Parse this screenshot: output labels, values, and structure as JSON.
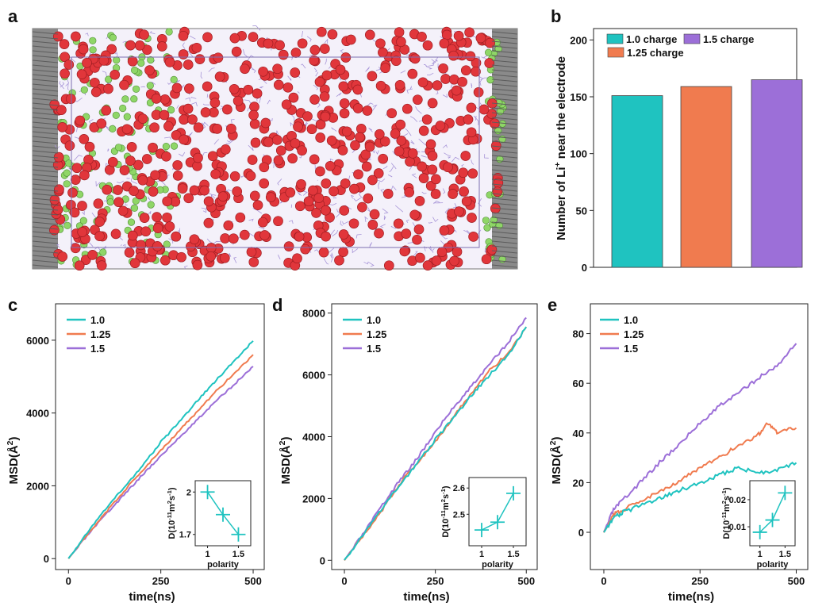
{
  "panels": {
    "a": {
      "label": "a"
    },
    "b": {
      "label": "b"
    },
    "c": {
      "label": "c"
    },
    "d": {
      "label": "d"
    },
    "e": {
      "label": "e"
    }
  },
  "colors": {
    "teal": "#1fc3c0",
    "orange": "#f07b4f",
    "purple": "#9c6fd8",
    "red_atom": "#e1363b",
    "green_atom": "#8fd667"
  },
  "chart_data": [
    {
      "id": "b",
      "type": "bar",
      "title": "",
      "xlabel": "",
      "ylabel": "Number of Li",
      "ylabel_sup": "+",
      "ylabel_tail": " near the electrode",
      "categories": [
        "1.0 charge",
        "1.25 charge",
        "1.5 charge"
      ],
      "values": [
        151,
        159,
        165
      ],
      "ylim": [
        0,
        210
      ],
      "yticks": [
        0,
        50,
        100,
        150,
        200
      ],
      "legend": "top-left"
    },
    {
      "id": "c",
      "type": "line",
      "xlabel": "time(ns)",
      "ylabel": "MSD(Å",
      "ylabel_sup": "2",
      "ylabel_tail": ")",
      "xlim": [
        -35,
        530
      ],
      "ylim": [
        -300,
        7000
      ],
      "xticks": [
        0,
        250,
        500
      ],
      "yticks": [
        0,
        2000,
        4000,
        6000
      ],
      "series": [
        {
          "name": "1.0",
          "x": [
            0,
            50,
            100,
            150,
            200,
            250,
            300,
            350,
            400,
            450,
            500
          ],
          "y": [
            0,
            700,
            1350,
            1950,
            2550,
            3200,
            3750,
            4350,
            4900,
            5450,
            5980
          ]
        },
        {
          "name": "1.25",
          "x": [
            0,
            50,
            100,
            150,
            200,
            250,
            300,
            350,
            400,
            450,
            500
          ],
          "y": [
            0,
            650,
            1250,
            1850,
            2420,
            2980,
            3520,
            4050,
            4600,
            5100,
            5600
          ]
        },
        {
          "name": "1.5",
          "x": [
            0,
            50,
            100,
            150,
            200,
            250,
            300,
            350,
            400,
            450,
            500
          ],
          "y": [
            0,
            620,
            1200,
            1750,
            2300,
            2820,
            3330,
            3830,
            4330,
            4800,
            5280
          ]
        }
      ],
      "inset": {
        "xlabel": "polarity",
        "ylabel": "D(10",
        "ylabel_sup1": "-11",
        "ylabel_mid": "m",
        "ylabel_sup2": "2",
        "ylabel_mid2": "s",
        "ylabel_sup3": "-1",
        "ylabel_tail": ")",
        "x": [
          1,
          1.25,
          1.5
        ],
        "y": [
          2.0,
          1.84,
          1.7
        ],
        "xlim": [
          0.8,
          1.7
        ],
        "ylim": [
          1.62,
          2.08
        ],
        "xticks": [
          1,
          1.5
        ],
        "yticks": [
          1.7,
          2
        ],
        "ytick_labels": [
          "1.7",
          "2"
        ]
      }
    },
    {
      "id": "d",
      "type": "line",
      "xlabel": "time(ns)",
      "ylabel": "MSD(Å",
      "ylabel_sup": "2",
      "ylabel_tail": ")",
      "xlim": [
        -35,
        530
      ],
      "ylim": [
        -300,
        8300
      ],
      "xticks": [
        0,
        250,
        500
      ],
      "yticks": [
        0,
        2000,
        4000,
        6000,
        8000
      ],
      "series": [
        {
          "name": "1.0",
          "x": [
            0,
            50,
            100,
            150,
            200,
            250,
            300,
            350,
            400,
            450,
            500
          ],
          "y": [
            0,
            800,
            1600,
            2400,
            3150,
            3900,
            4600,
            5350,
            6000,
            6650,
            7550
          ]
        },
        {
          "name": "1.25",
          "x": [
            0,
            50,
            100,
            150,
            200,
            250,
            300,
            350,
            400,
            450,
            500
          ],
          "y": [
            0,
            780,
            1550,
            2450,
            3150,
            3850,
            4650,
            5400,
            6150,
            6700,
            7550
          ]
        },
        {
          "name": "1.5",
          "x": [
            0,
            50,
            100,
            150,
            200,
            250,
            300,
            350,
            400,
            450,
            500
          ],
          "y": [
            0,
            820,
            1700,
            2550,
            3300,
            4150,
            4950,
            5650,
            6350,
            7050,
            7850
          ]
        }
      ],
      "inset": {
        "xlabel": "polarity",
        "ylabel": "D(10",
        "ylabel_sup1": "-11",
        "ylabel_mid": "m",
        "ylabel_sup2": "2",
        "ylabel_mid2": "s",
        "ylabel_sup3": "-1",
        "ylabel_tail": ")",
        "x": [
          1,
          1.25,
          1.5
        ],
        "y": [
          2.44,
          2.47,
          2.58
        ],
        "xlim": [
          0.8,
          1.7
        ],
        "ylim": [
          2.38,
          2.64
        ],
        "xticks": [
          1,
          1.5
        ],
        "yticks": [
          2.5,
          2.6
        ],
        "ytick_labels": [
          "2.5",
          "2.6"
        ]
      }
    },
    {
      "id": "e",
      "type": "line",
      "xlabel": "time(ns)",
      "ylabel": "MSD(Å",
      "ylabel_sup": "2",
      "ylabel_tail": ")",
      "xlim": [
        -35,
        530
      ],
      "ylim": [
        -15,
        92
      ],
      "xticks": [
        0,
        250,
        500
      ],
      "yticks": [
        0,
        20,
        40,
        60,
        80
      ],
      "series": [
        {
          "name": "1.0",
          "x": [
            0,
            25,
            50,
            100,
            150,
            200,
            250,
            300,
            350,
            400,
            450,
            500
          ],
          "y": [
            0,
            6,
            8,
            11,
            14,
            17,
            20,
            23,
            26,
            24,
            25,
            28
          ]
        },
        {
          "name": "1.25",
          "x": [
            0,
            25,
            50,
            100,
            150,
            200,
            250,
            300,
            350,
            400,
            425,
            450,
            500
          ],
          "y": [
            0,
            7,
            9,
            13,
            17,
            21,
            26,
            30,
            35,
            39,
            44,
            40,
            42
          ]
        },
        {
          "name": "1.5",
          "x": [
            0,
            25,
            50,
            100,
            150,
            200,
            250,
            300,
            350,
            400,
            450,
            500
          ],
          "y": [
            0,
            9,
            13,
            21,
            29,
            36,
            44,
            51,
            56,
            62,
            67,
            76
          ]
        }
      ],
      "inset": {
        "xlabel": "polarity",
        "ylabel": "D(10",
        "ylabel_sup1": "-11",
        "ylabel_mid": "m",
        "ylabel_sup2": "2",
        "ylabel_mid2": "s",
        "ylabel_sup3": "-1",
        "ylabel_tail": ")",
        "x": [
          1,
          1.25,
          1.5
        ],
        "y": [
          0.008,
          0.0125,
          0.0225
        ],
        "xlim": [
          0.8,
          1.7
        ],
        "ylim": [
          0.003,
          0.027
        ],
        "xticks": [
          1,
          1.5
        ],
        "yticks": [
          0.01,
          0.02
        ],
        "ytick_labels": [
          "0.01",
          "0.02"
        ]
      }
    }
  ]
}
